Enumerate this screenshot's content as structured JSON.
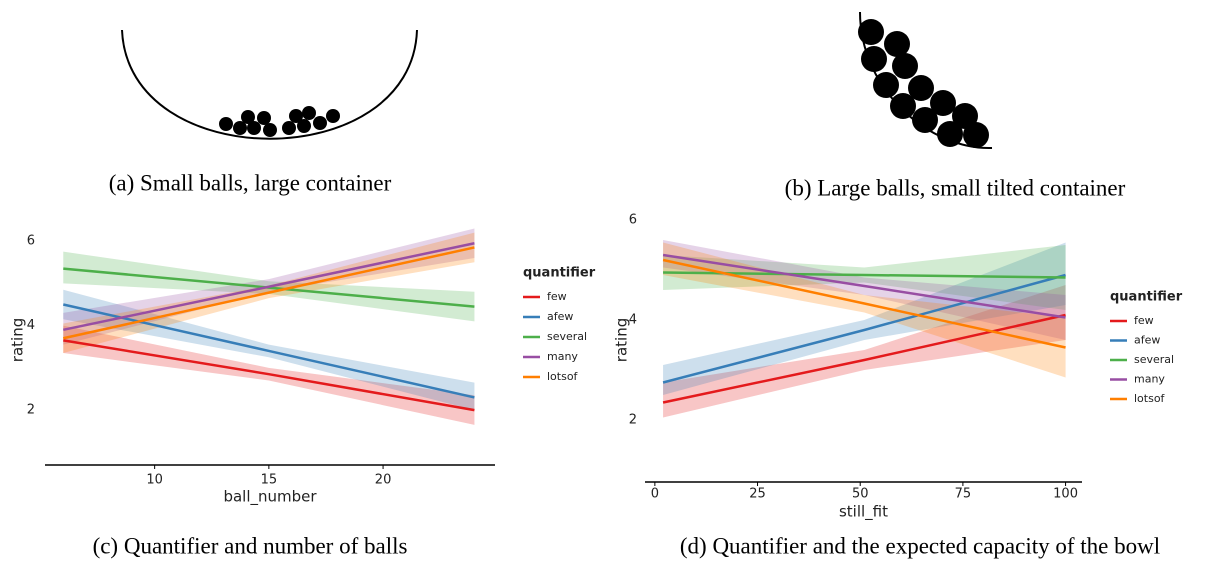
{
  "captions": [
    "(a) Small balls, large container",
    "(b) Large balls, small tilted container",
    "(c) Quantifier and number of balls",
    "(d) Quantifier and the expected capacity of the bowl"
  ],
  "chart_data": [
    {
      "type": "line",
      "x_label": "ball_number",
      "y_label": "rating",
      "legend_title": "quantifier",
      "x": [
        6,
        15,
        24
      ],
      "xlim": [
        5.2,
        24.9
      ],
      "ylim": [
        0.7,
        6.5
      ],
      "xticks": [
        10,
        15,
        20
      ],
      "yticks": [
        2,
        4,
        6
      ],
      "series": [
        {
          "name": "few",
          "color": "#e41a1c",
          "values": [
            3.65,
            2.85,
            2.0
          ],
          "lower": [
            3.35,
            2.7,
            1.65
          ],
          "upper": [
            4.0,
            3.0,
            2.35
          ]
        },
        {
          "name": "afew",
          "color": "#377eb8",
          "values": [
            4.5,
            3.4,
            2.3
          ],
          "lower": [
            4.15,
            3.25,
            2.0
          ],
          "upper": [
            4.85,
            3.55,
            2.65
          ]
        },
        {
          "name": "several",
          "color": "#4daf4a",
          "values": [
            5.35,
            4.9,
            4.45
          ],
          "lower": [
            5.0,
            4.75,
            4.1
          ],
          "upper": [
            5.75,
            5.05,
            4.8
          ]
        },
        {
          "name": "many",
          "color": "#984ea3",
          "values": [
            3.9,
            4.92,
            5.95
          ],
          "lower": [
            3.55,
            4.8,
            5.6
          ],
          "upper": [
            4.3,
            5.1,
            6.3
          ]
        },
        {
          "name": "lotsof",
          "color": "#ff7f00",
          "values": [
            3.7,
            4.78,
            5.85
          ],
          "lower": [
            3.35,
            4.65,
            5.5
          ],
          "upper": [
            4.05,
            4.95,
            6.2
          ]
        }
      ]
    },
    {
      "type": "line",
      "x_label": "still_fit",
      "y_label": "rating",
      "legend_title": "quantifier",
      "x": [
        2,
        51,
        100
      ],
      "xlim": [
        -2.4,
        104
      ],
      "ylim": [
        0.76,
        6.3
      ],
      "xticks": [
        0,
        25,
        50,
        75,
        100
      ],
      "yticks": [
        2,
        4,
        6
      ],
      "series": [
        {
          "name": "few",
          "color": "#e41a1c",
          "values": [
            2.35,
            3.2,
            4.1
          ],
          "lower": [
            2.05,
            3.0,
            3.6
          ],
          "upper": [
            2.75,
            3.4,
            4.7
          ]
        },
        {
          "name": "afew",
          "color": "#377eb8",
          "values": [
            2.75,
            3.8,
            4.9
          ],
          "lower": [
            2.5,
            3.6,
            4.3
          ],
          "upper": [
            3.1,
            4.0,
            5.55
          ]
        },
        {
          "name": "several",
          "color": "#4daf4a",
          "values": [
            4.95,
            4.9,
            4.85
          ],
          "lower": [
            4.6,
            4.75,
            4.2
          ],
          "upper": [
            5.3,
            5.05,
            5.5
          ]
        },
        {
          "name": "many",
          "color": "#984ea3",
          "values": [
            5.3,
            4.68,
            4.05
          ],
          "lower": [
            5.05,
            4.5,
            3.6
          ],
          "upper": [
            5.6,
            4.85,
            4.5
          ]
        },
        {
          "name": "lotsof",
          "color": "#ff7f00",
          "values": [
            5.2,
            4.33,
            3.45
          ],
          "lower": [
            4.9,
            4.15,
            2.85
          ],
          "upper": [
            5.55,
            4.5,
            4.05
          ]
        }
      ]
    }
  ]
}
